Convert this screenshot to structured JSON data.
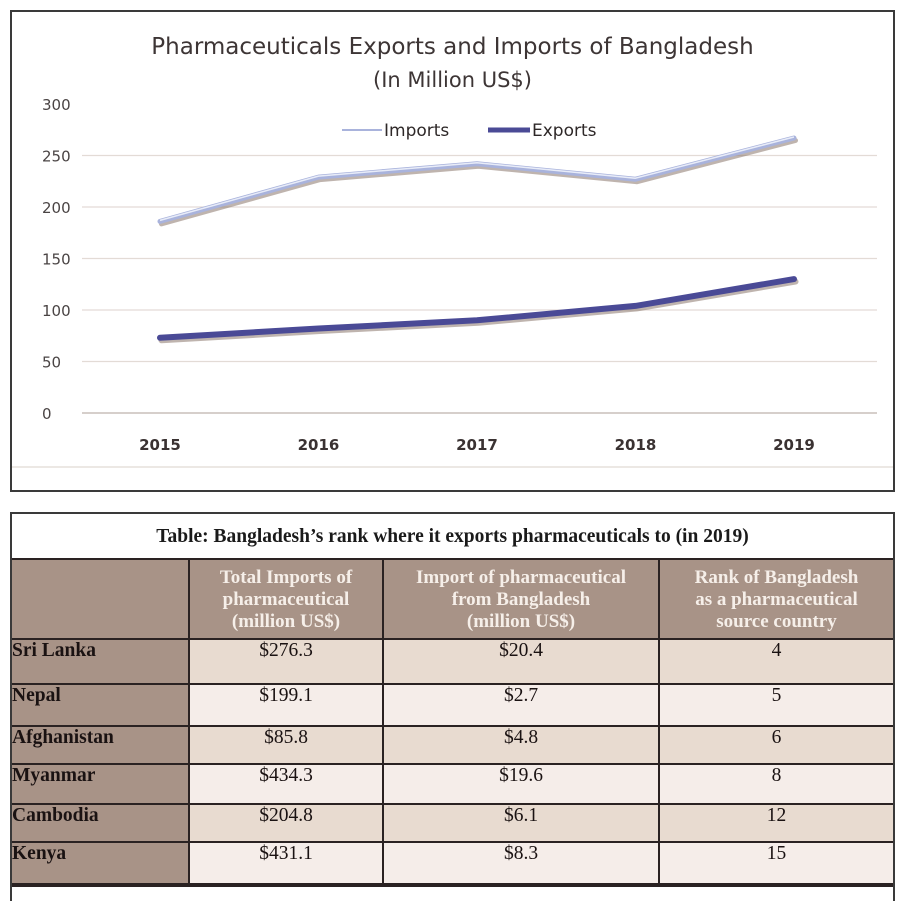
{
  "chart_data": {
    "type": "line",
    "title": "Pharmaceuticals Exports and Imports of Bangladesh",
    "subtitle": "(In Million US$)",
    "xlabel": "",
    "ylabel": "",
    "x": [
      "2015",
      "2016",
      "2017",
      "2018",
      "2019"
    ],
    "ylim": [
      0,
      300
    ],
    "yticks": [
      0,
      50,
      100,
      150,
      200,
      250,
      300
    ],
    "grid": true,
    "legend_position": "top-center",
    "series": [
      {
        "name": "Imports",
        "color": "#a9b3dc",
        "values": [
          186,
          229,
          242,
          227,
          267
        ]
      },
      {
        "name": "Exports",
        "color": "#4a4a96",
        "values": [
          73,
          82,
          90,
          104,
          130
        ]
      }
    ]
  },
  "table": {
    "caption": "Table: Bangladesh’s rank where it exports pharmaceuticals to (in 2019)",
    "columns": [
      "",
      "Total Imports of pharmaceutical (million US$)",
      "Import of pharmaceutical from Bangladesh (million US$)",
      "Rank of Bangladesh as a pharmaceutical source country"
    ],
    "column_lines": [
      [],
      [
        "Total Imports of",
        "pharmaceutical",
        "(million US$)"
      ],
      [
        "Import of pharmaceutical",
        "from Bangladesh",
        "(million US$)"
      ],
      [
        "Rank of Bangladesh",
        "as a pharmaceutical",
        "source country"
      ]
    ],
    "rows": [
      {
        "country": "Sri Lanka",
        "total_imports": "$276.3",
        "from_bangladesh": "$20.4",
        "rank": "4"
      },
      {
        "country": "Nepal",
        "total_imports": "$199.1",
        "from_bangladesh": "$2.7",
        "rank": "5"
      },
      {
        "country": "Afghanistan",
        "total_imports": "$85.8",
        "from_bangladesh": "$4.8",
        "rank": "6"
      },
      {
        "country": "Myanmar",
        "total_imports": "$434.3",
        "from_bangladesh": "$19.6",
        "rank": "8"
      },
      {
        "country": "Cambodia",
        "total_imports": "$204.8",
        "from_bangladesh": "$6.1",
        "rank": "12"
      },
      {
        "country": "Kenya",
        "total_imports": "$431.1",
        "from_bangladesh": "$8.3",
        "rank": "15"
      }
    ],
    "colors": {
      "header_bg": "#a89387",
      "header_text": "#f6efe9",
      "row_dark": "#e8dbd0",
      "row_light": "#f5ede9"
    }
  }
}
